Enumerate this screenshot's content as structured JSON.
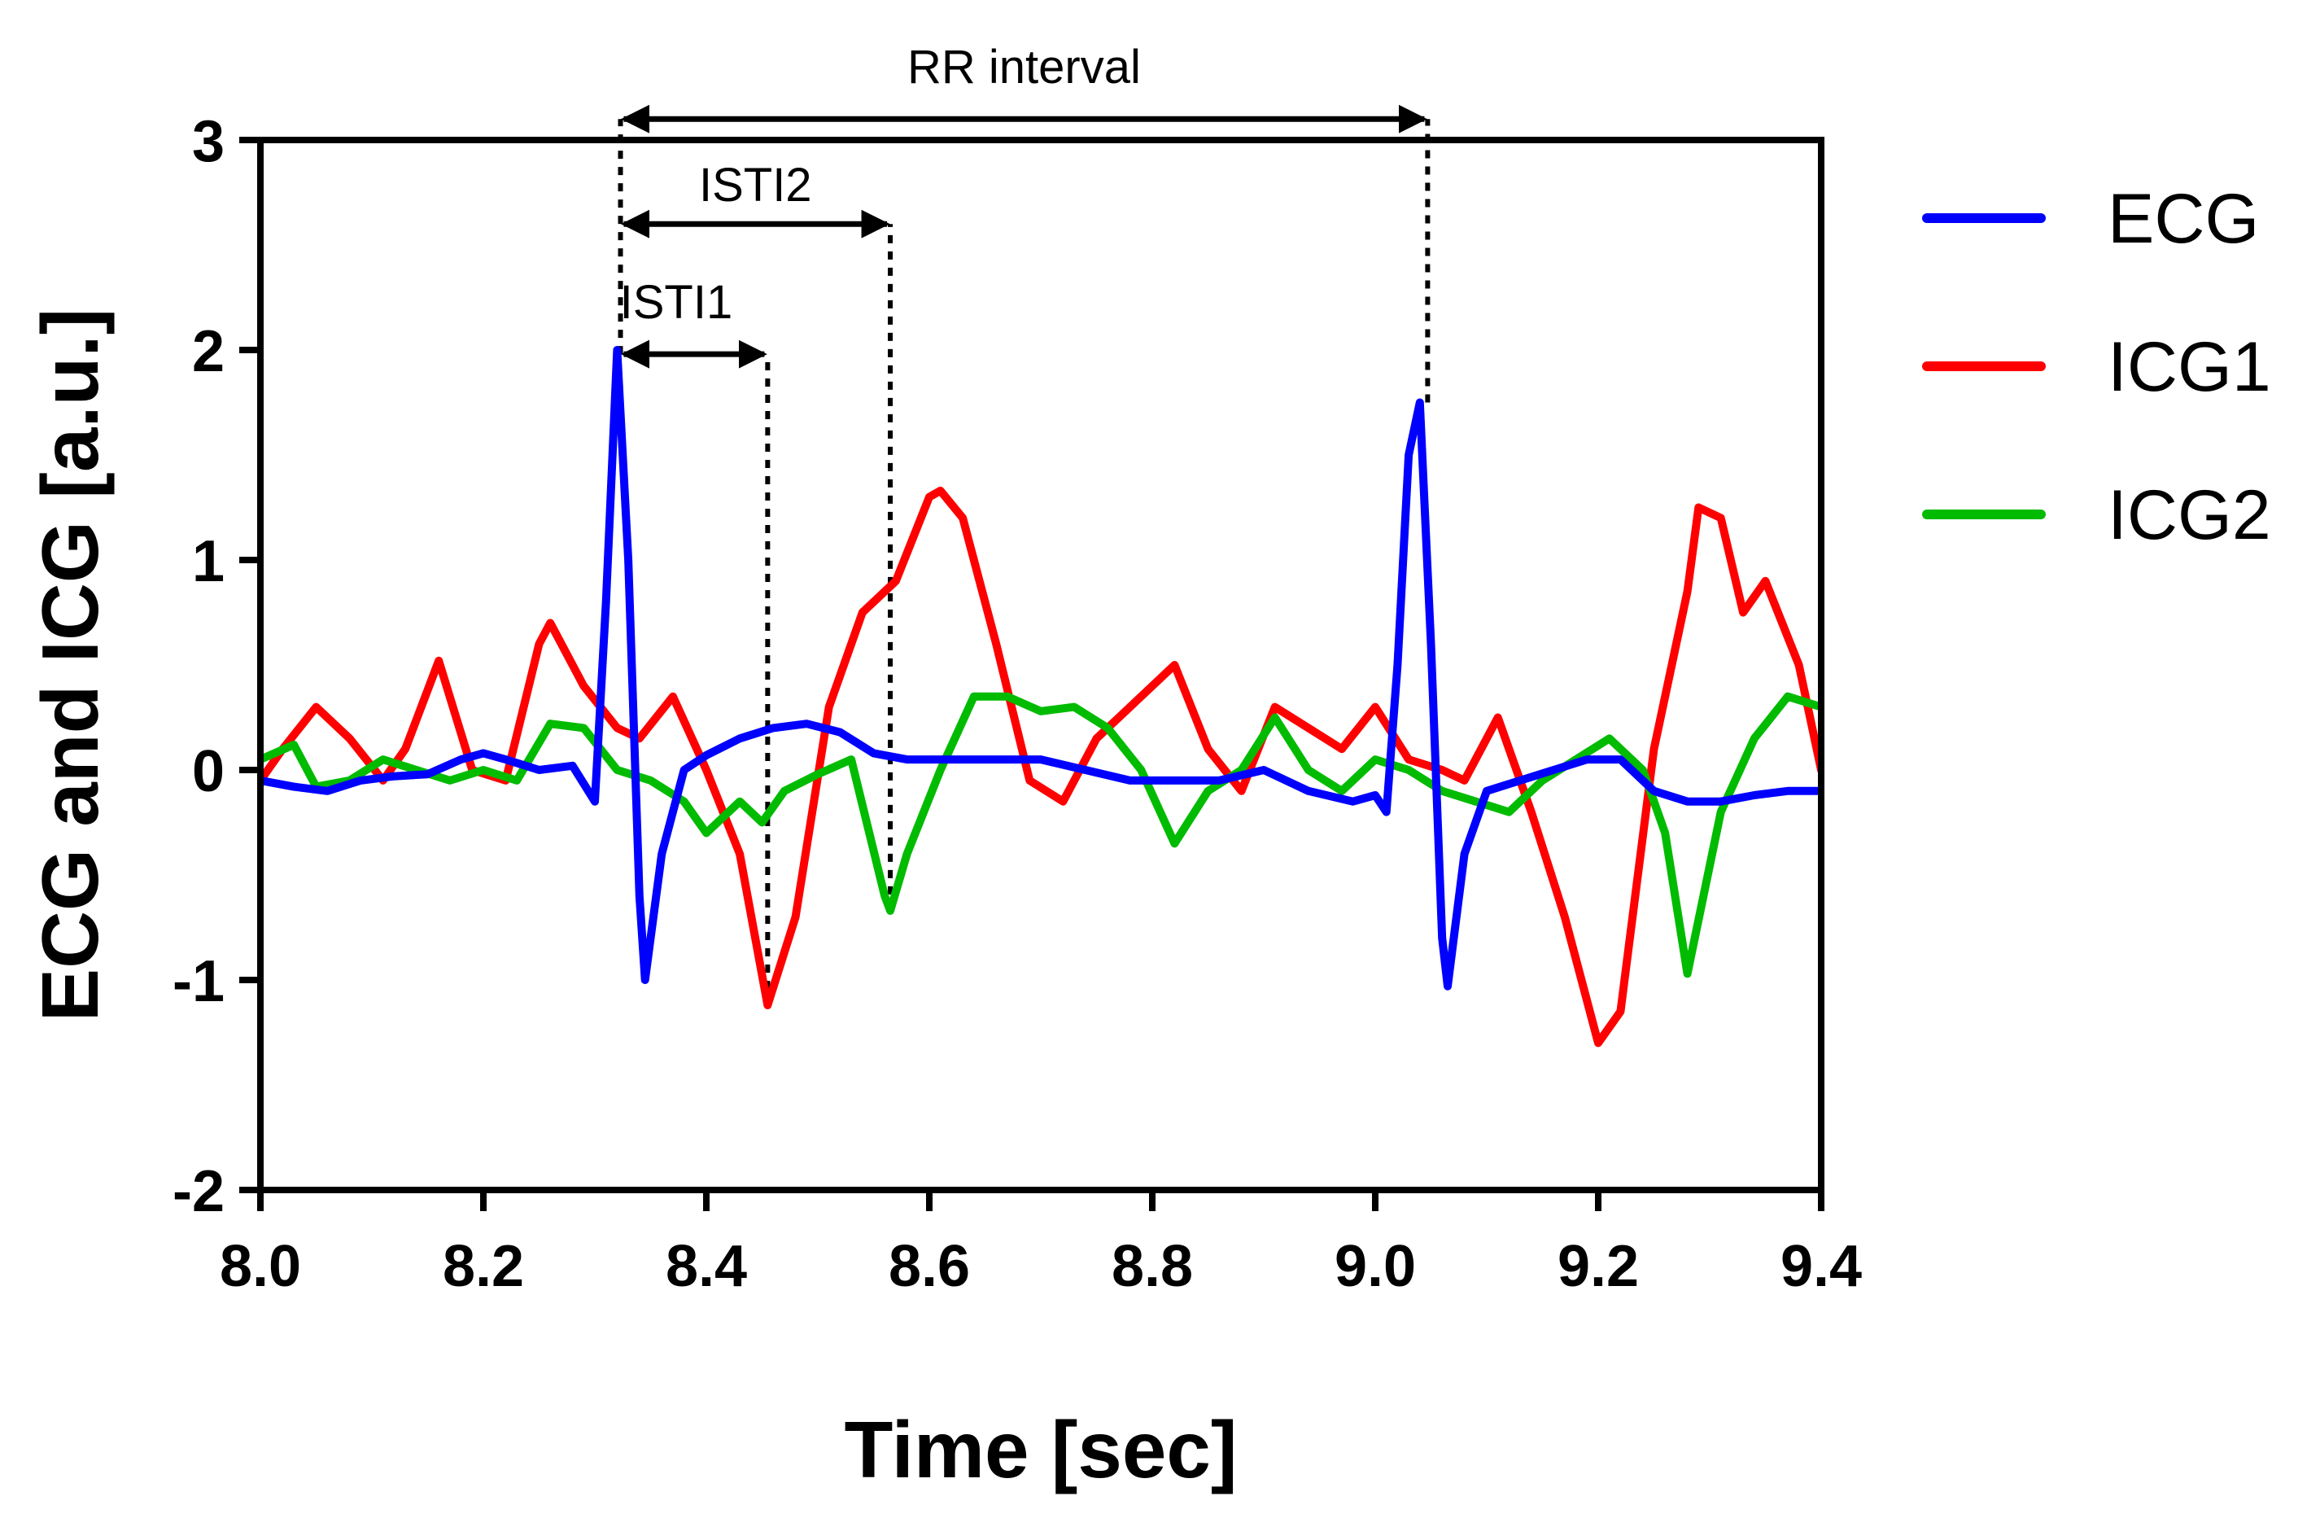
{
  "chart_data": {
    "type": "line",
    "title": "",
    "xlabel": "Time [sec]",
    "ylabel": "ECG and ICG [a.u.]",
    "xlim": [
      8.0,
      9.4
    ],
    "ylim": [
      -2,
      3
    ],
    "grid": false,
    "legend_position": "right",
    "x_ticks": [
      8.0,
      8.2,
      8.4,
      8.6,
      8.8,
      9.0,
      9.2,
      9.4
    ],
    "x_tick_labels": [
      "8.0",
      "8.2",
      "8.4",
      "8.6",
      "8.8",
      "9.0",
      "9.2",
      "9.4"
    ],
    "y_ticks": [
      -2,
      -1,
      0,
      1,
      2,
      3
    ],
    "y_tick_labels": [
      "-2",
      "-1",
      "0",
      "1",
      "2",
      "3"
    ],
    "series": [
      {
        "name": "ECG",
        "color": "#0000ff",
        "x": [
          8.0,
          8.03,
          8.06,
          8.09,
          8.12,
          8.15,
          8.18,
          8.2,
          8.22,
          8.25,
          8.28,
          8.3,
          8.31,
          8.32,
          8.33,
          8.34,
          8.345,
          8.36,
          8.38,
          8.4,
          8.43,
          8.46,
          8.49,
          8.52,
          8.55,
          8.58,
          8.62,
          8.66,
          8.7,
          8.74,
          8.78,
          8.82,
          8.86,
          8.9,
          8.94,
          8.98,
          9.0,
          9.01,
          9.02,
          9.03,
          9.04,
          9.05,
          9.06,
          9.065,
          9.08,
          9.1,
          9.13,
          9.16,
          9.19,
          9.22,
          9.25,
          9.28,
          9.31,
          9.34,
          9.37,
          9.4
        ],
        "values": [
          -0.05,
          -0.08,
          -0.1,
          -0.05,
          -0.03,
          -0.02,
          0.05,
          0.08,
          0.05,
          0.0,
          0.02,
          -0.15,
          0.8,
          2.0,
          1.0,
          -0.6,
          -1.0,
          -0.4,
          0.0,
          0.07,
          0.15,
          0.2,
          0.22,
          0.18,
          0.08,
          0.05,
          0.05,
          0.05,
          0.05,
          0.0,
          -0.05,
          -0.05,
          -0.05,
          0.0,
          -0.1,
          -0.15,
          -0.12,
          -0.2,
          0.5,
          1.5,
          1.75,
          0.6,
          -0.8,
          -1.03,
          -0.4,
          -0.1,
          -0.05,
          0.0,
          0.05,
          0.05,
          -0.1,
          -0.15,
          -0.15,
          -0.12,
          -0.1,
          -0.1
        ]
      },
      {
        "name": "ICG1",
        "color": "#ff0000",
        "x": [
          8.0,
          8.02,
          8.05,
          8.08,
          8.11,
          8.13,
          8.16,
          8.19,
          8.22,
          8.25,
          8.26,
          8.29,
          8.32,
          8.34,
          8.37,
          8.4,
          8.43,
          8.455,
          8.48,
          8.51,
          8.54,
          8.57,
          8.6,
          8.61,
          8.63,
          8.66,
          8.69,
          8.72,
          8.75,
          8.78,
          8.82,
          8.85,
          8.88,
          8.91,
          8.94,
          8.97,
          9.0,
          9.03,
          9.06,
          9.08,
          9.11,
          9.14,
          9.17,
          9.2,
          9.22,
          9.25,
          9.28,
          9.29,
          9.31,
          9.33,
          9.35,
          9.38,
          9.4
        ],
        "values": [
          -0.05,
          0.1,
          0.3,
          0.15,
          -0.05,
          0.1,
          0.52,
          0.0,
          -0.05,
          0.6,
          0.7,
          0.4,
          0.2,
          0.15,
          0.35,
          0.0,
          -0.4,
          -1.12,
          -0.7,
          0.3,
          0.75,
          0.9,
          1.3,
          1.33,
          1.2,
          0.6,
          -0.05,
          -0.15,
          0.15,
          0.3,
          0.5,
          0.1,
          -0.1,
          0.3,
          0.2,
          0.1,
          0.3,
          0.05,
          0.0,
          -0.05,
          0.25,
          -0.2,
          -0.7,
          -1.3,
          -1.15,
          0.1,
          0.85,
          1.25,
          1.2,
          0.75,
          0.9,
          0.5,
          0.0
        ]
      },
      {
        "name": "ICG2",
        "color": "#00bb00",
        "x": [
          8.0,
          8.03,
          8.05,
          8.08,
          8.11,
          8.14,
          8.17,
          8.2,
          8.23,
          8.26,
          8.29,
          8.32,
          8.35,
          8.38,
          8.4,
          8.43,
          8.45,
          8.47,
          8.5,
          8.53,
          8.56,
          8.565,
          8.58,
          8.61,
          8.64,
          8.67,
          8.7,
          8.73,
          8.76,
          8.79,
          8.82,
          8.85,
          8.88,
          8.91,
          8.94,
          8.97,
          9.0,
          9.03,
          9.06,
          9.09,
          9.12,
          9.15,
          9.18,
          9.21,
          9.24,
          9.26,
          9.28,
          9.31,
          9.34,
          9.37,
          9.4
        ],
        "values": [
          0.05,
          0.12,
          -0.08,
          -0.05,
          0.05,
          0.0,
          -0.05,
          0.0,
          -0.05,
          0.22,
          0.2,
          0.0,
          -0.05,
          -0.15,
          -0.3,
          -0.15,
          -0.25,
          -0.1,
          -0.02,
          0.05,
          -0.6,
          -0.67,
          -0.4,
          0.0,
          0.35,
          0.35,
          0.28,
          0.3,
          0.2,
          0.0,
          -0.35,
          -0.1,
          0.0,
          0.25,
          0.0,
          -0.1,
          0.05,
          0.0,
          -0.1,
          -0.15,
          -0.2,
          -0.05,
          0.05,
          0.15,
          0.0,
          -0.3,
          -0.97,
          -0.2,
          0.15,
          0.35,
          0.3
        ]
      }
    ],
    "annotations": [
      {
        "type": "double-arrow",
        "label": "RR interval",
        "x0": 8.323,
        "x1": 9.047,
        "y": 3.1
      },
      {
        "type": "double-arrow",
        "label": "ISTI2",
        "x0": 8.323,
        "x1": 8.565,
        "y": 2.6
      },
      {
        "type": "double-arrow",
        "label": "ISTI1",
        "x0": 8.323,
        "x1": 8.455,
        "y": 1.98
      },
      {
        "type": "vline",
        "x": 8.323,
        "y0": 1.98,
        "y1": 3.1
      },
      {
        "type": "vline",
        "x": 8.455,
        "y0": -1.12,
        "y1": 1.98
      },
      {
        "type": "vline",
        "x": 8.565,
        "y0": -0.67,
        "y1": 2.6
      },
      {
        "type": "vline",
        "x": 9.047,
        "y0": 1.75,
        "y1": 3.1
      }
    ]
  }
}
